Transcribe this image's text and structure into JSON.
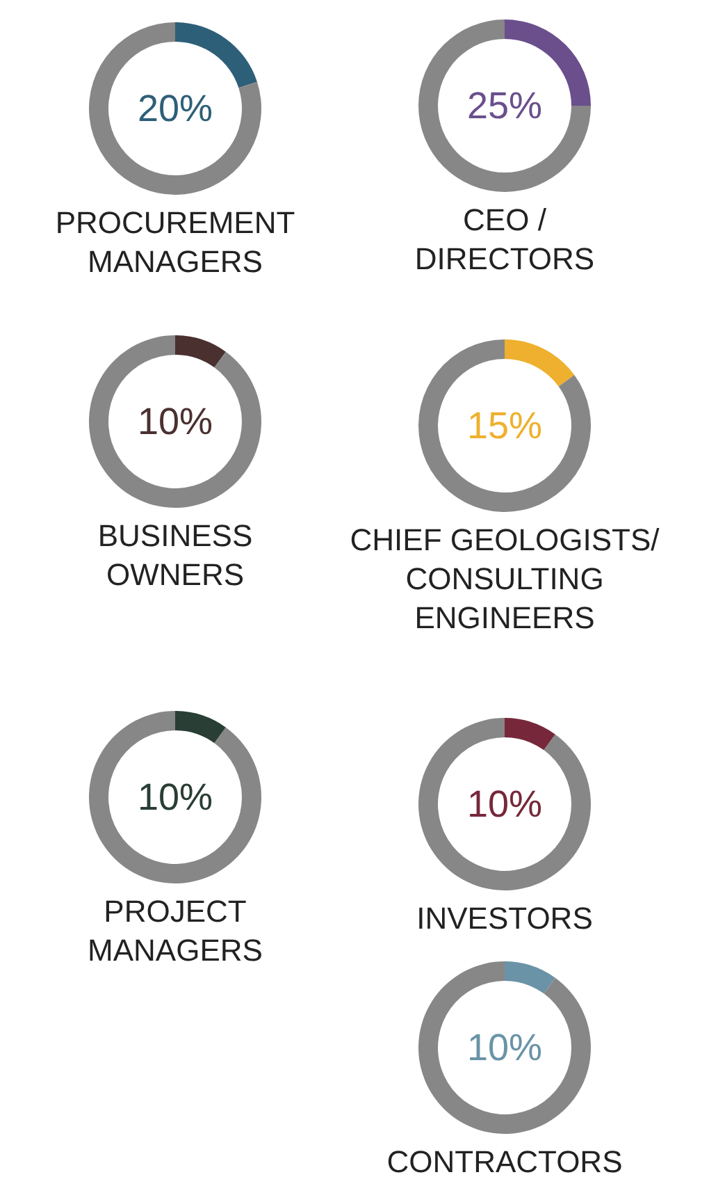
{
  "chart_data": [
    {
      "type": "donut",
      "title": "PROCUREMENT\nMANAGERS",
      "categories": [
        null,
        null
      ],
      "values": [
        20,
        80
      ],
      "colors": [
        "#2e5f78",
        "#878787"
      ],
      "annotations": [
        "20%"
      ]
    },
    {
      "type": "donut",
      "title": "CEO /\nDIRECTORS",
      "categories": [
        null,
        null
      ],
      "values": [
        25,
        75
      ],
      "colors": [
        "#6a4f8c",
        "#878787"
      ],
      "annotations": [
        "25%"
      ]
    },
    {
      "type": "donut",
      "title": "BUSINESS\nOWNERS",
      "categories": [
        null,
        null
      ],
      "values": [
        10,
        90
      ],
      "colors": [
        "#4b3030",
        "#878787"
      ],
      "annotations": [
        "10%"
      ]
    },
    {
      "type": "donut",
      "title": "CHIEF GEOLOGISTS/\nCONSULTING\nENGINEERS",
      "categories": [
        null,
        null
      ],
      "values": [
        15,
        85
      ],
      "colors": [
        "#eeb02e",
        "#878787"
      ],
      "annotations": [
        "15%"
      ]
    },
    {
      "type": "donut",
      "title": "PROJECT\nMANAGERS",
      "categories": [
        null,
        null
      ],
      "values": [
        10,
        90
      ],
      "colors": [
        "#293e34",
        "#878787"
      ],
      "annotations": [
        "10%"
      ]
    },
    {
      "type": "donut",
      "title": "INVESTORS",
      "categories": [
        null,
        null
      ],
      "values": [
        10,
        90
      ],
      "colors": [
        "#76283a",
        "#878787"
      ],
      "annotations": [
        "10%"
      ]
    },
    {
      "type": "donut",
      "title": "CONTRACTORS",
      "categories": [
        null,
        null
      ],
      "values": [
        10,
        90
      ],
      "colors": [
        "#6a93a7",
        "#878787"
      ],
      "annotations": [
        "10%"
      ]
    }
  ]
}
